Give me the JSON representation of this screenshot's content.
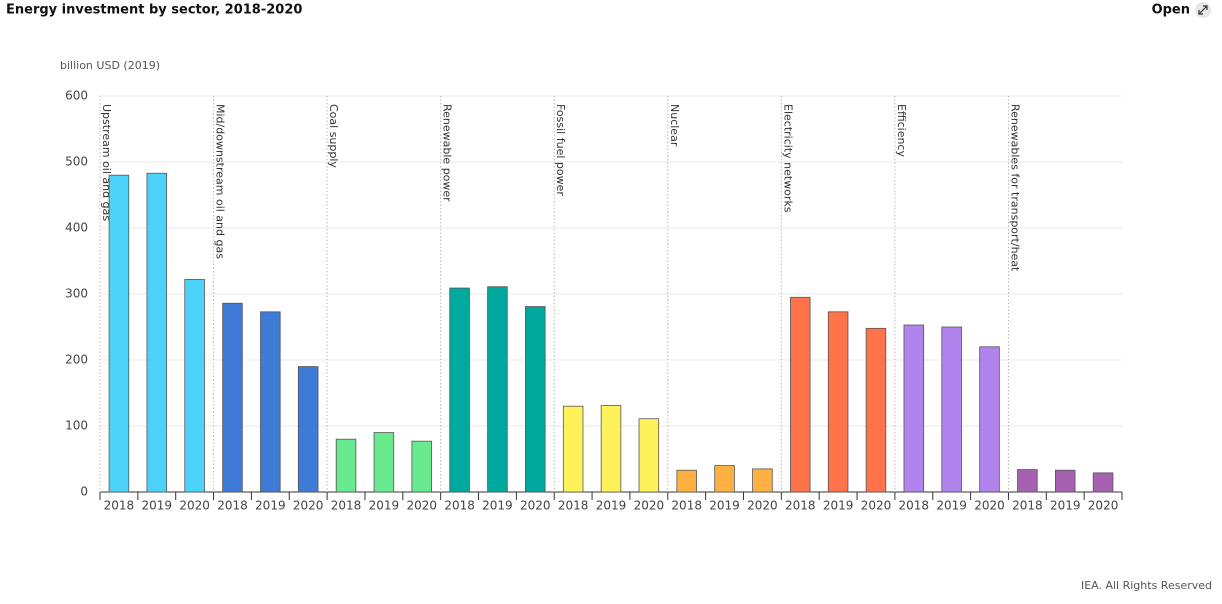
{
  "chart_data": {
    "type": "bar",
    "title": "Energy investment by sector, 2018-2020",
    "y_label": "billion USD (2019)",
    "categories": [
      "2018",
      "2019",
      "2020"
    ],
    "series": [
      {
        "name": "Upstream oil and gas",
        "color": "#4dd2fc",
        "values": [
          480,
          483,
          322
        ]
      },
      {
        "name": "Mid/downstream oil and gas",
        "color": "#3d7bd6",
        "values": [
          286,
          273,
          190
        ]
      },
      {
        "name": "Coal supply",
        "color": "#6aea8e",
        "values": [
          80,
          90,
          77
        ]
      },
      {
        "name": "Renewable power",
        "color": "#00a99d",
        "values": [
          309,
          311,
          281
        ]
      },
      {
        "name": "Fossil fuel power",
        "color": "#fff15a",
        "values": [
          130,
          131,
          111
        ]
      },
      {
        "name": "Nuclear",
        "color": "#fdb143",
        "values": [
          33,
          40,
          35
        ]
      },
      {
        "name": "Electricity networks",
        "color": "#ff734a",
        "values": [
          295,
          273,
          248
        ]
      },
      {
        "name": "Efficiency",
        "color": "#b084ec",
        "values": [
          253,
          250,
          220
        ]
      },
      {
        "name": "Renewables for transport/heat",
        "color": "#a661b0",
        "values": [
          34,
          33,
          29
        ]
      }
    ],
    "ylim": [
      0,
      600
    ],
    "yticks": [
      0,
      100,
      200,
      300,
      400,
      500,
      600
    ],
    "grid": true
  },
  "controls": {
    "open": "Open"
  },
  "footer": "IEA. All Rights Reserved"
}
